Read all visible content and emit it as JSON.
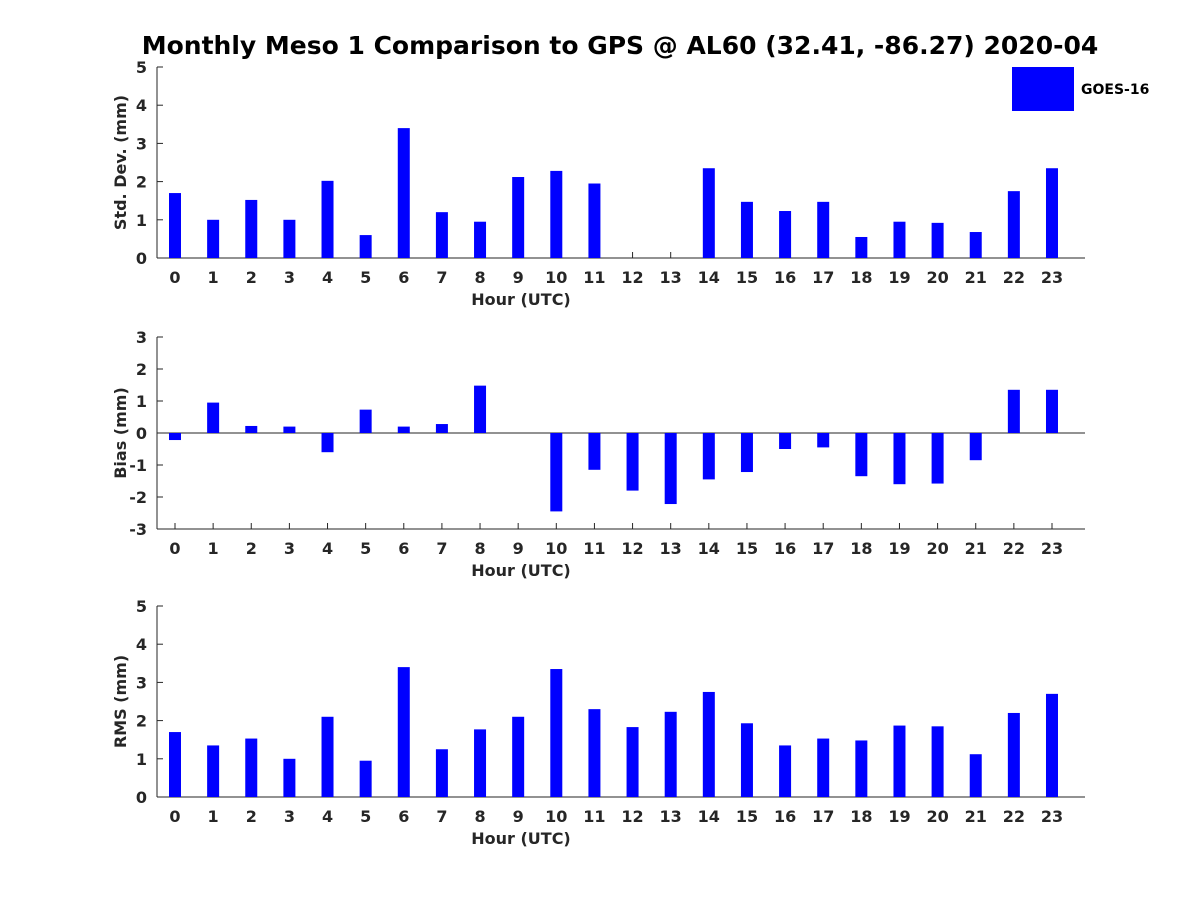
{
  "figure_title": "Monthly Meso 1 Comparison to GPS @ AL60 (32.41, -86.27) 2020-04",
  "legend": {
    "label": "GOES-16",
    "color": "#0000ff"
  },
  "bar_color": "#0000ff",
  "chart_data": [
    {
      "type": "bar",
      "id": "std",
      "xlabel": "Hour (UTC)",
      "ylabel": "Std. Dev. (mm)",
      "ylim": [
        0,
        5
      ],
      "yticks": [
        0,
        1,
        2,
        3,
        4,
        5
      ],
      "categories": [
        "0",
        "1",
        "2",
        "3",
        "4",
        "5",
        "6",
        "7",
        "8",
        "9",
        "10",
        "11",
        "12",
        "13",
        "14",
        "15",
        "16",
        "17",
        "18",
        "19",
        "20",
        "21",
        "22",
        "23"
      ],
      "series": [
        {
          "name": "GOES-16",
          "values": [
            1.7,
            1.0,
            1.52,
            1.0,
            2.02,
            0.6,
            3.4,
            1.2,
            0.95,
            2.12,
            2.28,
            1.95,
            0,
            0,
            2.35,
            1.47,
            1.23,
            1.47,
            0.55,
            0.95,
            0.92,
            0.68,
            1.75,
            2.35
          ]
        }
      ],
      "legend": "top-right"
    },
    {
      "type": "bar",
      "id": "bias",
      "xlabel": "Hour (UTC)",
      "ylabel": "Bias (mm)",
      "ylim": [
        -3,
        3
      ],
      "yticks": [
        -3,
        -2,
        -1,
        0,
        1,
        2,
        3
      ],
      "categories": [
        "0",
        "1",
        "2",
        "3",
        "4",
        "5",
        "6",
        "7",
        "8",
        "9",
        "10",
        "11",
        "12",
        "13",
        "14",
        "15",
        "16",
        "17",
        "18",
        "19",
        "20",
        "21",
        "22",
        "23"
      ],
      "series": [
        {
          "name": "GOES-16",
          "values": [
            -0.22,
            0.95,
            0.22,
            0.2,
            -0.6,
            0.73,
            0.2,
            0.28,
            1.48,
            0,
            -2.45,
            -1.15,
            -1.8,
            -2.22,
            -1.45,
            -1.22,
            -0.5,
            -0.45,
            -1.35,
            -1.6,
            -1.58,
            -0.85,
            1.35,
            1.35
          ]
        }
      ]
    },
    {
      "type": "bar",
      "id": "rms",
      "xlabel": "Hour (UTC)",
      "ylabel": "RMS (mm)",
      "ylim": [
        0,
        5
      ],
      "yticks": [
        0,
        1,
        2,
        3,
        4,
        5
      ],
      "categories": [
        "0",
        "1",
        "2",
        "3",
        "4",
        "5",
        "6",
        "7",
        "8",
        "9",
        "10",
        "11",
        "12",
        "13",
        "14",
        "15",
        "16",
        "17",
        "18",
        "19",
        "20",
        "21",
        "22",
        "23"
      ],
      "series": [
        {
          "name": "GOES-16",
          "values": [
            1.7,
            1.35,
            1.53,
            1.0,
            2.1,
            0.95,
            3.4,
            1.25,
            1.77,
            2.1,
            3.35,
            2.3,
            1.83,
            2.23,
            2.75,
            1.93,
            1.35,
            1.53,
            1.48,
            1.87,
            1.85,
            1.12,
            2.2,
            2.7
          ]
        }
      ]
    }
  ]
}
